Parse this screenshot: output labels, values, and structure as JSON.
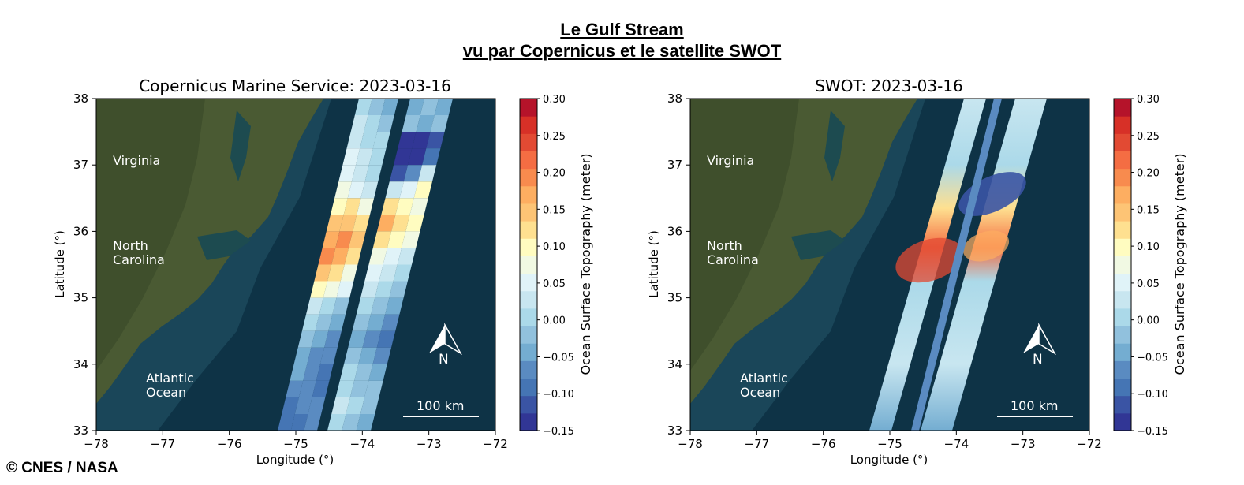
{
  "figure": {
    "title_line1": "Le Gulf Stream",
    "title_line2": "vu par Copernicus et le satellite SWOT",
    "copyright": "© CNES / NASA"
  },
  "colors": {
    "ocean": "#0e3346",
    "ocean_deep": "#082a3c",
    "land": "#4a5a33",
    "land_dark": "#3b4a2a",
    "colorbar": [
      "#313695",
      "#3a54a4",
      "#4575b4",
      "#5a8bc1",
      "#74add1",
      "#91c1dd",
      "#abd9e9",
      "#c8e6f0",
      "#e0f3f8",
      "#f1f9e3",
      "#fffcc0",
      "#fee090",
      "#fdc475",
      "#fdae61",
      "#f88b4e",
      "#f46d43",
      "#e24a33",
      "#d73027",
      "#b5132a"
    ]
  },
  "panels": [
    {
      "title": "Copernicus Marine Service: 2023-03-16",
      "xlabel": "Longitude (°)",
      "ylabel": "Latitude (°)",
      "xlim": [
        -78,
        -72
      ],
      "ylim": [
        33,
        38
      ],
      "xticks": [
        "−78",
        "−77",
        "−76",
        "−75",
        "−74",
        "−73",
        "−72"
      ],
      "yticks": [
        "33",
        "34",
        "35",
        "36",
        "37",
        "38"
      ],
      "labels": {
        "virginia": "Virginia",
        "nc_line1": "North",
        "nc_line2": "Carolina",
        "ao_line1": "Atlantic",
        "ao_line2": "Ocean"
      },
      "scale_bar": "100 km",
      "north": "N",
      "colorbar": {
        "label": "Ocean Surface Topography (meter)",
        "range": [
          -0.15,
          0.3
        ],
        "ticks": [
          "0.30",
          "0.25",
          "0.20",
          "0.15",
          "0.10",
          "0.05",
          "0.00",
          "−0.05",
          "−0.10",
          "−0.15"
        ]
      }
    },
    {
      "title": "SWOT: 2023-03-16",
      "xlabel": "Longitude (°)",
      "ylabel": "Latitude (°)",
      "xlim": [
        -78,
        -72
      ],
      "ylim": [
        33,
        38
      ],
      "xticks": [
        "−78",
        "−77",
        "−76",
        "−75",
        "−74",
        "−73",
        "−72"
      ],
      "yticks": [
        "33",
        "34",
        "35",
        "36",
        "37",
        "38"
      ],
      "labels": {
        "virginia": "Virginia",
        "nc_line1": "North",
        "nc_line2": "Carolina",
        "ao_line1": "Atlantic",
        "ao_line2": "Ocean"
      },
      "scale_bar": "100 km",
      "north": "N",
      "colorbar": {
        "label": "Ocean Surface Topography (meter)",
        "range": [
          -0.15,
          0.3
        ],
        "ticks": [
          "0.30",
          "0.25",
          "0.20",
          "0.15",
          "0.10",
          "0.05",
          "0.00",
          "−0.05",
          "−0.10",
          "−0.15"
        ]
      }
    }
  ]
}
